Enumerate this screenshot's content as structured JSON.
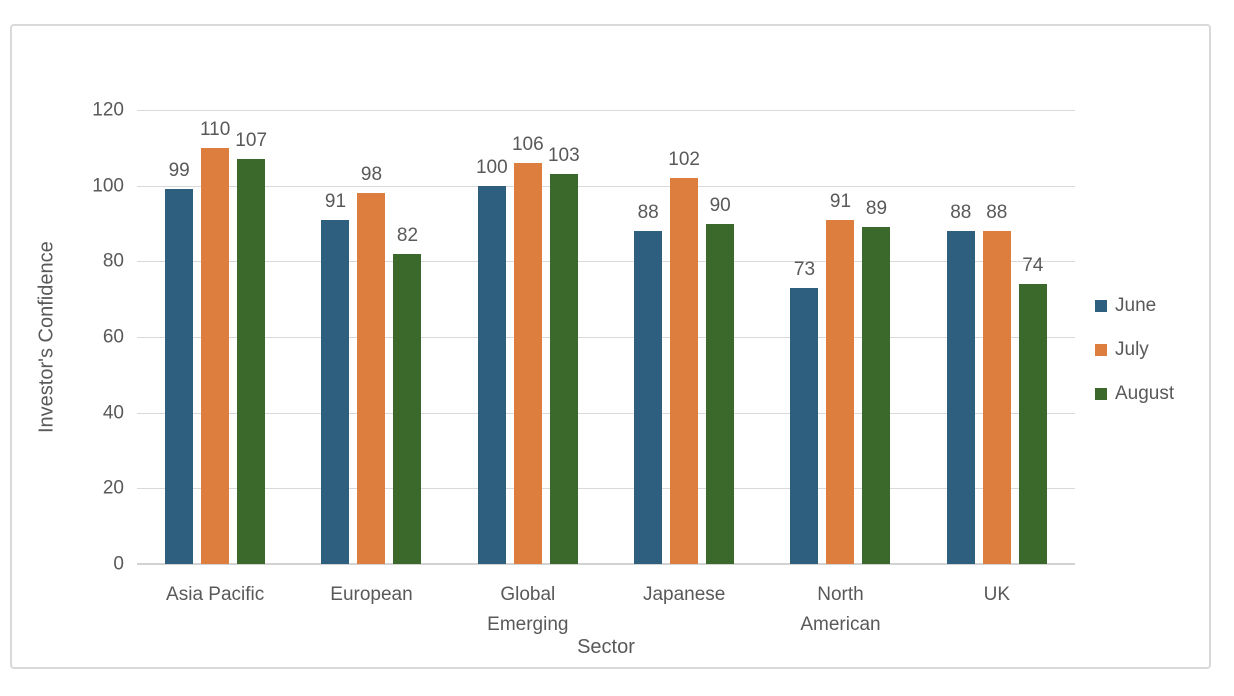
{
  "chart_data": {
    "type": "bar",
    "title": "",
    "xlabel": "Sector",
    "ylabel": "Investor's Confidence",
    "categories": [
      "Asia Pacific",
      "European",
      "Global Emerging",
      "Japanese",
      "North American",
      "UK"
    ],
    "series": [
      {
        "name": "June",
        "color": "#2E5F7E",
        "values": [
          99,
          91,
          100,
          88,
          73,
          88
        ]
      },
      {
        "name": "July",
        "color": "#DD7E3E",
        "values": [
          110,
          98,
          106,
          102,
          91,
          88
        ]
      },
      {
        "name": "August",
        "color": "#3B682B",
        "values": [
          107,
          82,
          103,
          90,
          89,
          74
        ]
      }
    ],
    "y_axis": {
      "min": 0,
      "max": 120,
      "step": 20,
      "ticks": [
        0,
        20,
        40,
        60,
        80,
        100,
        120
      ]
    },
    "grid": true,
    "data_labels": true,
    "legend_position": "right"
  },
  "styles": {
    "gridline_color": "#d9d9d9",
    "zero_line_color": "#d2d2d2",
    "text_color": "#595959",
    "frame_border_color": "#d9d9d9",
    "background": "#ffffff"
  }
}
